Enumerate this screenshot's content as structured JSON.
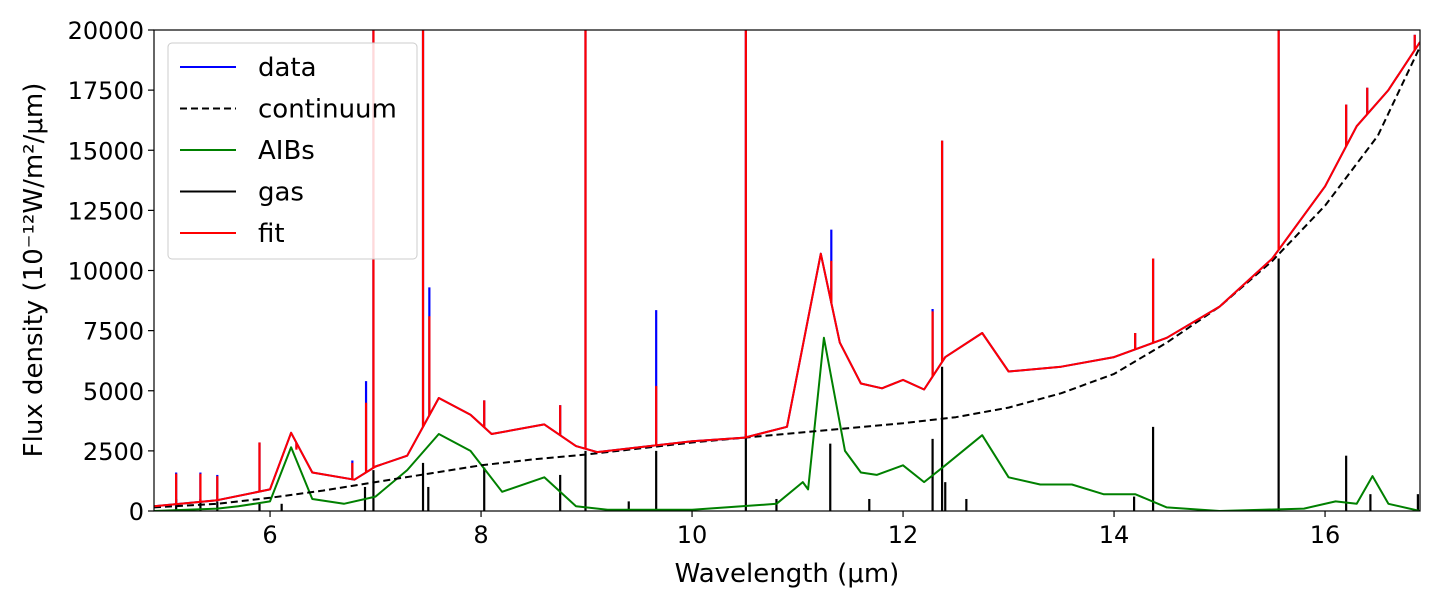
{
  "chart_data": {
    "type": "line",
    "title": "",
    "xlabel": "Wavelength (μm)",
    "ylabel": "Flux density (10⁻¹²W/m²/μm)",
    "xlim": [
      4.9,
      16.9
    ],
    "ylim": [
      0,
      20000
    ],
    "x_ticks": [
      6,
      8,
      10,
      12,
      14,
      16
    ],
    "y_ticks": [
      0,
      2500,
      5000,
      7500,
      10000,
      12500,
      15000,
      17500,
      20000
    ],
    "grid": false,
    "legend": {
      "location": "upper-left",
      "entries": [
        "data",
        "continuum",
        "AIBs",
        "gas",
        "fit"
      ]
    },
    "colors": {
      "data": "#0000ff",
      "continuum": "#000000",
      "AIBs": "#008000",
      "gas": "#000000",
      "fit": "#ff0000"
    },
    "series": [
      {
        "name": "continuum",
        "style": "dashed",
        "x": [
          4.9,
          5.5,
          6.0,
          6.5,
          7.0,
          7.5,
          8.0,
          8.5,
          9.0,
          9.5,
          10.0,
          10.5,
          11.0,
          11.5,
          12.0,
          12.5,
          13.0,
          13.5,
          14.0,
          14.5,
          15.0,
          15.5,
          16.0,
          16.5,
          16.9
        ],
        "y": [
          150,
          300,
          550,
          850,
          1200,
          1550,
          1900,
          2150,
          2350,
          2600,
          2850,
          3050,
          3250,
          3450,
          3650,
          3900,
          4300,
          4900,
          5700,
          7000,
          8500,
          10400,
          12700,
          15600,
          19300
        ]
      },
      {
        "name": "AIBs",
        "x": [
          4.9,
          5.5,
          5.7,
          6.0,
          6.2,
          6.4,
          6.7,
          7.0,
          7.3,
          7.6,
          7.9,
          8.2,
          8.6,
          8.9,
          9.2,
          10.0,
          10.8,
          11.05,
          11.1,
          11.25,
          11.45,
          11.6,
          11.75,
          12.0,
          12.2,
          12.4,
          12.75,
          13.0,
          13.3,
          13.6,
          13.9,
          14.2,
          14.5,
          15.0,
          15.8,
          16.1,
          16.3,
          16.45,
          16.6,
          16.9
        ],
        "y": [
          0,
          100,
          200,
          400,
          2650,
          500,
          300,
          600,
          1700,
          3200,
          2500,
          800,
          1400,
          200,
          50,
          50,
          300,
          1200,
          900,
          7200,
          2500,
          1600,
          1500,
          1900,
          1200,
          1900,
          3150,
          1400,
          1100,
          1100,
          700,
          700,
          150,
          0,
          100,
          400,
          300,
          1450,
          300,
          0
        ]
      },
      {
        "name": "data",
        "x": [
          4.9,
          5.5,
          6.0,
          6.2,
          6.4,
          6.8,
          7.0,
          7.3,
          7.6,
          7.9,
          8.1,
          8.6,
          8.9,
          9.1,
          9.5,
          10.0,
          10.5,
          10.9,
          11.1,
          11.22,
          11.4,
          11.6,
          11.8,
          12.0,
          12.2,
          12.4,
          12.75,
          13.0,
          13.5,
          14.0,
          14.5,
          15.0,
          15.5,
          16.0,
          16.3,
          16.6,
          16.9
        ],
        "y": [
          200,
          450,
          900,
          3250,
          1600,
          1300,
          1850,
          2300,
          4700,
          4000,
          3200,
          3600,
          2700,
          2450,
          2650,
          2900,
          3050,
          3500,
          8000,
          10700,
          7000,
          5300,
          5100,
          5450,
          5050,
          6400,
          7400,
          5800,
          6000,
          6400,
          7200,
          8500,
          10500,
          13500,
          16000,
          17500,
          19500
        ]
      },
      {
        "name": "fit",
        "x": [
          4.9,
          5.5,
          6.0,
          6.2,
          6.4,
          6.8,
          7.0,
          7.3,
          7.6,
          7.9,
          8.1,
          8.6,
          8.9,
          9.1,
          9.5,
          10.0,
          10.5,
          10.9,
          11.1,
          11.22,
          11.4,
          11.6,
          11.8,
          12.0,
          12.2,
          12.4,
          12.75,
          13.0,
          13.5,
          14.0,
          14.5,
          15.0,
          15.5,
          16.0,
          16.3,
          16.6,
          16.9
        ],
        "y": [
          200,
          450,
          900,
          3250,
          1600,
          1300,
          1850,
          2300,
          4700,
          4000,
          3200,
          3600,
          2700,
          2450,
          2650,
          2900,
          3050,
          3500,
          8000,
          10700,
          7000,
          5300,
          5100,
          5450,
          5050,
          6400,
          7400,
          5800,
          6000,
          6400,
          7200,
          8500,
          10500,
          13500,
          16000,
          17500,
          19500
        ]
      }
    ],
    "gas_lines": [
      {
        "x": 5.11,
        "y": 500
      },
      {
        "x": 5.34,
        "y": 500
      },
      {
        "x": 5.5,
        "y": 400
      },
      {
        "x": 5.9,
        "y": 300
      },
      {
        "x": 6.11,
        "y": 300
      },
      {
        "x": 6.9,
        "y": 1000
      },
      {
        "x": 6.98,
        "y": 1700
      },
      {
        "x": 7.45,
        "y": 2000
      },
      {
        "x": 7.5,
        "y": 1000
      },
      {
        "x": 8.03,
        "y": 1800
      },
      {
        "x": 8.75,
        "y": 1500
      },
      {
        "x": 8.99,
        "y": 2500
      },
      {
        "x": 9.4,
        "y": 400
      },
      {
        "x": 9.66,
        "y": 2500
      },
      {
        "x": 10.51,
        "y": 3200
      },
      {
        "x": 10.8,
        "y": 500
      },
      {
        "x": 11.31,
        "y": 2800
      },
      {
        "x": 11.68,
        "y": 500
      },
      {
        "x": 12.28,
        "y": 3000
      },
      {
        "x": 12.37,
        "y": 6000
      },
      {
        "x": 12.4,
        "y": 1200
      },
      {
        "x": 12.6,
        "y": 500
      },
      {
        "x": 14.19,
        "y": 600
      },
      {
        "x": 14.37,
        "y": 3500
      },
      {
        "x": 15.56,
        "y": 10500
      },
      {
        "x": 16.2,
        "y": 2300
      },
      {
        "x": 16.43,
        "y": 700
      },
      {
        "x": 16.88,
        "y": 700
      }
    ],
    "data_spikes": [
      {
        "x": 5.11,
        "y": 1600
      },
      {
        "x": 5.34,
        "y": 1600
      },
      {
        "x": 5.5,
        "y": 1500
      },
      {
        "x": 5.9,
        "y": 2850
      },
      {
        "x": 6.25,
        "y": 2600
      },
      {
        "x": 6.78,
        "y": 2100
      },
      {
        "x": 6.91,
        "y": 5400
      },
      {
        "x": 6.98,
        "y": 20000
      },
      {
        "x": 7.45,
        "y": 20000
      },
      {
        "x": 7.51,
        "y": 9300
      },
      {
        "x": 8.03,
        "y": 4600
      },
      {
        "x": 8.75,
        "y": 4400
      },
      {
        "x": 8.99,
        "y": 20000
      },
      {
        "x": 9.66,
        "y": 8350
      },
      {
        "x": 10.51,
        "y": 20000
      },
      {
        "x": 11.32,
        "y": 11700
      },
      {
        "x": 12.28,
        "y": 8400
      },
      {
        "x": 12.37,
        "y": 15400
      },
      {
        "x": 14.2,
        "y": 7400
      },
      {
        "x": 14.37,
        "y": 10500
      },
      {
        "x": 15.56,
        "y": 20000
      },
      {
        "x": 16.2,
        "y": 16900
      },
      {
        "x": 16.4,
        "y": 17600
      },
      {
        "x": 16.85,
        "y": 19800
      }
    ],
    "fit_spikes": [
      {
        "x": 5.11,
        "y": 1550
      },
      {
        "x": 5.34,
        "y": 1550
      },
      {
        "x": 5.5,
        "y": 1450
      },
      {
        "x": 5.9,
        "y": 2850
      },
      {
        "x": 6.25,
        "y": 2550
      },
      {
        "x": 6.78,
        "y": 2000
      },
      {
        "x": 6.91,
        "y": 4500
      },
      {
        "x": 6.98,
        "y": 20000
      },
      {
        "x": 7.45,
        "y": 20000
      },
      {
        "x": 7.51,
        "y": 8100
      },
      {
        "x": 8.03,
        "y": 4600
      },
      {
        "x": 8.75,
        "y": 4400
      },
      {
        "x": 8.99,
        "y": 20000
      },
      {
        "x": 9.66,
        "y": 5200
      },
      {
        "x": 10.51,
        "y": 20000
      },
      {
        "x": 11.32,
        "y": 10400
      },
      {
        "x": 12.28,
        "y": 8300
      },
      {
        "x": 12.37,
        "y": 15400
      },
      {
        "x": 14.2,
        "y": 7400
      },
      {
        "x": 14.37,
        "y": 10500
      },
      {
        "x": 15.56,
        "y": 20000
      },
      {
        "x": 16.2,
        "y": 16900
      },
      {
        "x": 16.4,
        "y": 17600
      },
      {
        "x": 16.85,
        "y": 19800
      }
    ]
  }
}
